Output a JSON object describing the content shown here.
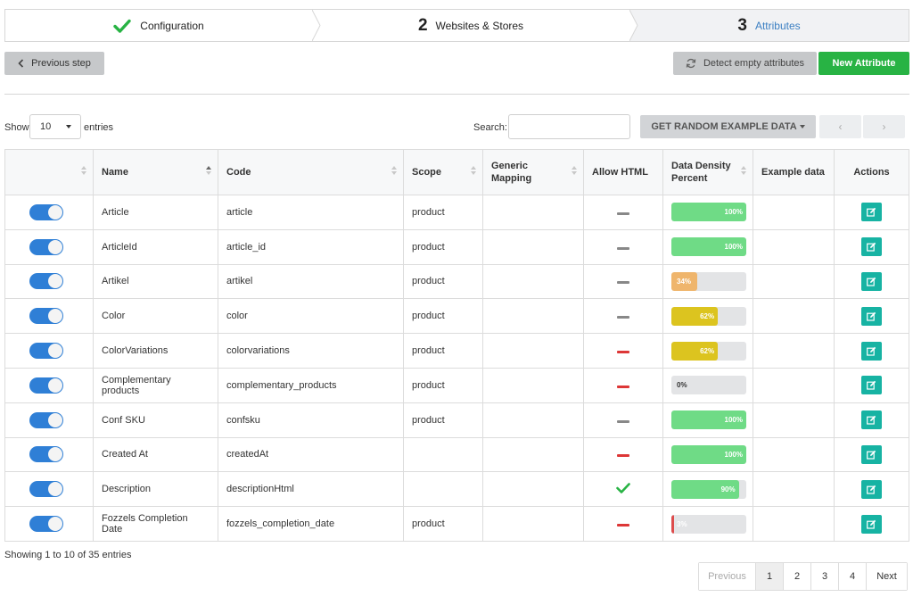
{
  "wizard": {
    "steps": [
      {
        "number": "",
        "label": "Configuration",
        "state": "done"
      },
      {
        "number": "2",
        "label": "Websites & Stores",
        "state": "normal"
      },
      {
        "number": "3",
        "label": "Attributes",
        "state": "active"
      }
    ]
  },
  "toolbar": {
    "previous_step": "Previous step",
    "detect_empty": "Detect empty attributes",
    "new_attribute": "New Attribute"
  },
  "controls": {
    "show_label": "Show",
    "page_length": "10",
    "entries_label": "entries",
    "search_label": "Search:",
    "search_value": "",
    "random_data": "GET RANDOM EXAMPLE DATA",
    "prev_arrow": "‹",
    "next_arrow": "›"
  },
  "table": {
    "headers": {
      "name": "Name",
      "code": "Code",
      "scope": "Scope",
      "generic": "Generic Mapping",
      "html": "Allow HTML",
      "density": "Data Density Percent",
      "example": "Example data",
      "actions": "Actions"
    },
    "rows": [
      {
        "name": "Article",
        "code": "article",
        "scope": "product",
        "html": "dash-gray",
        "density": "100%",
        "pct": 100,
        "color": "#6fdb86"
      },
      {
        "name": "ArticleId",
        "code": "article_id",
        "scope": "product",
        "html": "dash-gray",
        "density": "100%",
        "pct": 100,
        "color": "#6fdb86"
      },
      {
        "name": "Artikel",
        "code": "artikel",
        "scope": "product",
        "html": "dash-gray",
        "density": "34%",
        "pct": 34,
        "color": "#efb56c"
      },
      {
        "name": "Color",
        "code": "color",
        "scope": "product",
        "html": "dash-gray",
        "density": "62%",
        "pct": 62,
        "color": "#dcc41f"
      },
      {
        "name": "ColorVariations",
        "code": "colorvariations",
        "scope": "product",
        "html": "dash-red",
        "density": "62%",
        "pct": 62,
        "color": "#dcc41f"
      },
      {
        "name": "Complementary products",
        "code": "complementary_products",
        "scope": "product",
        "html": "dash-red",
        "density": "0%",
        "pct": 0,
        "color": "#e3e4e6"
      },
      {
        "name": "Conf SKU",
        "code": "confsku",
        "scope": "product",
        "html": "dash-gray",
        "density": "100%",
        "pct": 100,
        "color": "#6fdb86"
      },
      {
        "name": "Created At",
        "code": "createdAt",
        "scope": "",
        "html": "dash-red",
        "density": "100%",
        "pct": 100,
        "color": "#6fdb86"
      },
      {
        "name": "Description",
        "code": "descriptionHtml",
        "scope": "",
        "html": "check",
        "density": "90%",
        "pct": 90,
        "color": "#6fdb86"
      },
      {
        "name": "Fozzels Completion Date",
        "code": "fozzels_completion_date",
        "scope": "product",
        "html": "dash-red",
        "density": "3%",
        "pct": 3,
        "color": "#dd4c4c"
      }
    ]
  },
  "footer": {
    "info": "Showing 1 to 10 of 35 entries",
    "pager": {
      "previous": "Previous",
      "pages": [
        "1",
        "2",
        "3",
        "4"
      ],
      "active_page": "1",
      "next": "Next"
    }
  },
  "colors": {
    "accent_green": "#28b344",
    "toggle_blue": "#2f7fd6",
    "action_teal": "#17b3a3",
    "active_step": "#3b7fc2"
  }
}
